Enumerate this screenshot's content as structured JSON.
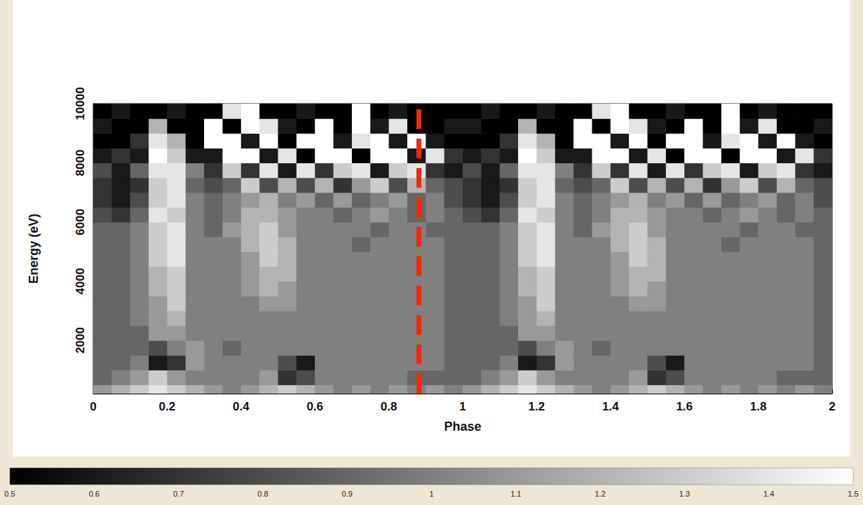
{
  "chart_data": {
    "type": "heatmap",
    "x_label": "Phase",
    "y_label": "Energy (eV)",
    "xlim": [
      0,
      2
    ],
    "xticks": [
      0,
      0.2,
      0.4,
      0.6,
      0.8,
      1,
      1.2,
      1.4,
      1.6,
      1.8,
      2
    ],
    "ylim": [
      200,
      10000
    ],
    "yticks": [
      2000,
      4000,
      6000,
      8000,
      10000
    ],
    "cells": {
      "phase_edges": [
        0,
        0.05,
        0.1,
        0.15,
        0.2,
        0.25,
        0.3,
        0.35,
        0.4,
        0.45,
        0.5,
        0.55,
        0.6,
        0.65,
        0.7,
        0.75,
        0.8,
        0.85,
        0.9,
        0.95,
        1,
        1.05,
        1.1,
        1.15,
        1.2,
        1.25,
        1.3,
        1.35,
        1.4,
        1.45,
        1.5,
        1.55,
        1.6,
        1.65,
        1.7,
        1.75,
        1.8,
        1.85,
        1.9,
        1.95,
        2
      ],
      "energy_edges": [
        200,
        500,
        1000,
        1500,
        2000,
        2500,
        3000,
        3500,
        4000,
        4500,
        5000,
        5500,
        6000,
        6500,
        7000,
        7500,
        8000,
        8500,
        9000,
        9500,
        10000
      ],
      "values": [
        [
          1.1,
          1.2,
          1.3,
          1.4,
          1.3,
          1.2,
          1.1,
          1.0,
          1.1,
          1.2,
          1.3,
          1.2,
          1.1,
          1.0,
          1.1,
          1.0,
          1.1,
          1.0,
          1.1,
          1.0,
          1.1,
          1.2,
          1.3,
          1.4,
          1.3,
          1.2,
          1.1,
          1.0,
          1.1,
          1.2,
          1.3,
          1.2,
          1.1,
          1.0,
          1.1,
          1.0,
          1.1,
          1.0,
          1.1,
          1.0
        ],
        [
          0.9,
          1.0,
          1.1,
          1.3,
          1.1,
          1.0,
          1.0,
          1.0,
          1.0,
          1.1,
          0.7,
          0.8,
          1.0,
          1.0,
          1.0,
          1.0,
          1.0,
          0.9,
          0.9,
          0.9,
          0.9,
          1.0,
          1.1,
          1.3,
          1.1,
          1.0,
          1.0,
          1.0,
          1.0,
          1.1,
          0.7,
          0.8,
          1.0,
          1.0,
          1.0,
          1.0,
          1.0,
          0.9,
          0.9,
          0.9
        ],
        [
          0.9,
          0.9,
          1.0,
          0.6,
          0.7,
          1.1,
          1.0,
          1.0,
          1.0,
          1.0,
          0.8,
          0.6,
          1.0,
          1.0,
          1.0,
          1.0,
          1.0,
          1.0,
          1.0,
          0.9,
          0.9,
          0.9,
          1.0,
          0.6,
          0.7,
          1.1,
          1.0,
          1.0,
          1.0,
          1.0,
          0.8,
          0.6,
          1.0,
          1.0,
          1.0,
          1.0,
          1.0,
          1.0,
          1.0,
          0.9
        ],
        [
          0.9,
          0.9,
          0.9,
          0.8,
          1.0,
          1.1,
          1.0,
          0.9,
          1.0,
          1.0,
          1.0,
          1.0,
          1.0,
          1.0,
          1.0,
          1.0,
          1.0,
          1.0,
          1.0,
          0.9,
          0.9,
          0.9,
          0.9,
          0.8,
          1.0,
          1.1,
          1.0,
          0.9,
          1.0,
          1.0,
          1.0,
          1.0,
          1.0,
          1.0,
          1.0,
          1.0,
          1.0,
          1.0,
          1.0,
          0.9
        ],
        [
          0.9,
          0.9,
          0.9,
          1.1,
          1.1,
          1.0,
          1.0,
          1.0,
          1.0,
          1.0,
          1.0,
          1.0,
          1.0,
          1.0,
          1.0,
          1.0,
          1.0,
          1.0,
          1.0,
          0.9,
          0.9,
          0.9,
          0.9,
          1.1,
          1.1,
          1.0,
          1.0,
          1.0,
          1.0,
          1.0,
          1.0,
          1.0,
          1.0,
          1.0,
          1.0,
          1.0,
          1.0,
          1.0,
          1.0,
          0.9
        ],
        [
          0.9,
          0.9,
          1.0,
          1.1,
          1.2,
          1.0,
          1.0,
          1.0,
          1.0,
          1.0,
          1.0,
          1.0,
          1.0,
          1.0,
          1.0,
          1.0,
          1.0,
          1.0,
          1.0,
          0.9,
          0.9,
          0.9,
          1.0,
          1.1,
          1.2,
          1.0,
          1.0,
          1.0,
          1.0,
          1.0,
          1.0,
          1.0,
          1.0,
          1.0,
          1.0,
          1.0,
          1.0,
          1.0,
          1.0,
          0.9
        ],
        [
          0.9,
          0.9,
          1.0,
          1.1,
          1.3,
          1.0,
          1.0,
          1.0,
          1.0,
          1.1,
          1.1,
          1.0,
          1.0,
          1.0,
          1.0,
          1.0,
          1.0,
          1.0,
          1.0,
          0.9,
          0.9,
          0.9,
          1.0,
          1.1,
          1.3,
          1.0,
          1.0,
          1.0,
          1.0,
          1.1,
          1.1,
          1.0,
          1.0,
          1.0,
          1.0,
          1.0,
          1.0,
          1.0,
          1.0,
          0.9
        ],
        [
          0.9,
          0.9,
          1.0,
          1.2,
          1.3,
          1.0,
          1.0,
          1.0,
          1.1,
          1.2,
          1.1,
          1.0,
          1.0,
          1.0,
          1.0,
          1.0,
          1.0,
          1.0,
          1.0,
          0.9,
          0.9,
          0.9,
          1.0,
          1.2,
          1.3,
          1.0,
          1.0,
          1.0,
          1.1,
          1.2,
          1.1,
          1.0,
          1.0,
          1.0,
          1.0,
          1.0,
          1.0,
          1.0,
          1.0,
          0.9
        ],
        [
          0.9,
          0.9,
          1.0,
          1.2,
          1.3,
          1.0,
          1.0,
          1.0,
          1.1,
          1.2,
          1.2,
          1.0,
          1.0,
          1.0,
          1.0,
          1.0,
          1.0,
          1.0,
          1.0,
          0.9,
          0.9,
          0.9,
          1.0,
          1.2,
          1.3,
          1.0,
          1.0,
          1.0,
          1.1,
          1.2,
          1.2,
          1.0,
          1.0,
          1.0,
          1.0,
          1.0,
          1.0,
          1.0,
          1.0,
          0.9
        ],
        [
          0.9,
          0.9,
          1.0,
          1.3,
          1.4,
          1.0,
          1.0,
          1.0,
          1.1,
          1.3,
          1.2,
          1.0,
          1.0,
          1.0,
          1.0,
          1.0,
          1.0,
          1.0,
          1.0,
          0.9,
          0.9,
          0.9,
          1.0,
          1.3,
          1.4,
          1.0,
          1.0,
          1.0,
          1.1,
          1.3,
          1.2,
          1.0,
          1.0,
          1.0,
          1.0,
          1.0,
          1.0,
          1.0,
          1.0,
          0.9
        ],
        [
          0.9,
          0.9,
          1.0,
          1.3,
          1.4,
          1.0,
          1.0,
          1.0,
          1.2,
          1.3,
          1.2,
          1.0,
          1.0,
          1.0,
          0.9,
          1.0,
          1.0,
          1.0,
          1.0,
          0.9,
          0.9,
          0.9,
          1.0,
          1.3,
          1.4,
          1.0,
          1.0,
          1.0,
          1.2,
          1.3,
          1.2,
          1.0,
          1.0,
          1.0,
          0.9,
          1.0,
          1.0,
          1.0,
          1.0,
          0.9
        ],
        [
          0.9,
          0.9,
          1.0,
          1.3,
          1.4,
          1.0,
          0.9,
          1.1,
          1.2,
          1.3,
          1.1,
          1.0,
          1.0,
          1.0,
          1.0,
          0.9,
          1.0,
          1.0,
          0.9,
          0.9,
          0.9,
          0.9,
          1.0,
          1.3,
          1.4,
          1.0,
          0.9,
          1.1,
          1.2,
          1.3,
          1.1,
          1.0,
          1.0,
          1.0,
          1.0,
          0.9,
          1.0,
          1.0,
          0.9,
          0.9
        ],
        [
          0.8,
          0.7,
          0.9,
          1.4,
          1.3,
          1.0,
          0.9,
          1.0,
          1.2,
          1.2,
          1.1,
          1.0,
          1.0,
          0.9,
          1.0,
          1.1,
          1.0,
          0.9,
          1.0,
          0.9,
          0.8,
          0.7,
          0.9,
          1.4,
          1.3,
          1.0,
          0.9,
          1.0,
          1.2,
          1.2,
          1.1,
          1.0,
          1.0,
          0.9,
          1.0,
          1.1,
          1.0,
          0.9,
          1.0,
          0.9
        ],
        [
          0.7,
          0.6,
          0.8,
          1.3,
          1.4,
          1.0,
          0.9,
          1.0,
          1.1,
          1.2,
          1.0,
          1.1,
          0.9,
          1.1,
          0.9,
          1.0,
          1.1,
          0.9,
          1.0,
          0.8,
          0.7,
          0.6,
          0.8,
          1.3,
          1.4,
          1.0,
          0.9,
          1.0,
          1.1,
          1.2,
          1.0,
          1.1,
          0.9,
          1.1,
          0.9,
          1.0,
          1.1,
          0.9,
          1.0,
          0.8
        ],
        [
          0.7,
          0.6,
          0.7,
          1.3,
          1.4,
          0.9,
          0.8,
          0.9,
          1.3,
          0.8,
          1.2,
          0.8,
          1.2,
          0.7,
          1.1,
          1.3,
          0.8,
          1.2,
          0.9,
          0.8,
          0.7,
          0.6,
          0.7,
          1.3,
          1.4,
          0.9,
          0.8,
          0.9,
          1.3,
          0.8,
          1.2,
          0.8,
          1.2,
          0.7,
          1.1,
          1.3,
          0.8,
          1.2,
          0.9,
          0.8
        ],
        [
          0.8,
          0.6,
          0.9,
          1.4,
          1.4,
          1.0,
          0.7,
          1.3,
          0.7,
          1.4,
          0.6,
          1.4,
          0.7,
          1.3,
          1.4,
          0.6,
          1.3,
          1.4,
          0.7,
          0.6,
          0.8,
          0.6,
          0.9,
          1.4,
          1.4,
          1.0,
          0.7,
          1.3,
          0.7,
          1.4,
          0.6,
          1.4,
          0.7,
          1.3,
          1.4,
          0.6,
          1.3,
          1.4,
          0.7,
          0.6
        ],
        [
          0.6,
          0.7,
          0.6,
          1.5,
          1.3,
          0.6,
          0.6,
          1.5,
          1.5,
          0.6,
          1.4,
          0.5,
          1.5,
          1.5,
          0.5,
          1.5,
          1.5,
          0.6,
          1.4,
          0.7,
          0.6,
          0.7,
          0.6,
          1.5,
          1.3,
          0.6,
          0.6,
          1.5,
          1.5,
          0.6,
          1.4,
          0.5,
          1.5,
          1.5,
          0.5,
          1.5,
          1.5,
          0.6,
          1.4,
          0.7
        ],
        [
          0.5,
          0.5,
          0.7,
          1.4,
          1.2,
          0.5,
          1.5,
          1.5,
          0.6,
          1.5,
          0.5,
          1.5,
          1.5,
          0.6,
          1.4,
          1.5,
          0.6,
          1.5,
          0.6,
          0.5,
          0.5,
          0.5,
          0.7,
          1.4,
          1.2,
          0.5,
          1.5,
          1.5,
          0.6,
          1.5,
          0.5,
          1.5,
          1.5,
          0.6,
          1.4,
          1.5,
          0.6,
          1.5,
          0.6,
          0.5
        ],
        [
          0.6,
          0.5,
          0.5,
          1.2,
          0.5,
          0.5,
          1.5,
          0.5,
          1.5,
          1.4,
          0.6,
          0.5,
          1.5,
          0.5,
          1.5,
          0.6,
          1.4,
          0.5,
          0.5,
          0.6,
          0.6,
          0.5,
          0.5,
          1.2,
          0.5,
          0.5,
          1.5,
          0.5,
          1.5,
          1.4,
          0.6,
          0.5,
          1.5,
          0.5,
          1.5,
          0.6,
          1.4,
          0.5,
          0.5,
          0.6
        ],
        [
          0.5,
          0.6,
          0.5,
          0.5,
          0.6,
          0.5,
          0.5,
          1.4,
          1.5,
          0.5,
          0.5,
          0.6,
          0.5,
          0.5,
          1.5,
          0.5,
          0.6,
          0.5,
          0.5,
          0.5,
          0.5,
          0.6,
          0.5,
          0.5,
          0.6,
          0.5,
          0.5,
          1.4,
          1.5,
          0.5,
          0.5,
          0.6,
          0.5,
          0.5,
          1.5,
          0.5,
          0.6,
          0.5,
          0.5,
          0.5
        ]
      ]
    },
    "colorbar": {
      "range": [
        0.5,
        1.5
      ],
      "ticks": [
        0.5,
        0.6,
        0.7,
        0.8,
        0.9,
        1,
        1.1,
        1.2,
        1.3,
        1.4,
        1.5
      ],
      "colors": [
        "#000000",
        "#ffffff"
      ]
    },
    "reference_line": {
      "x": 0.875,
      "color": "#ee2a0c",
      "line_style": "dashed"
    }
  }
}
